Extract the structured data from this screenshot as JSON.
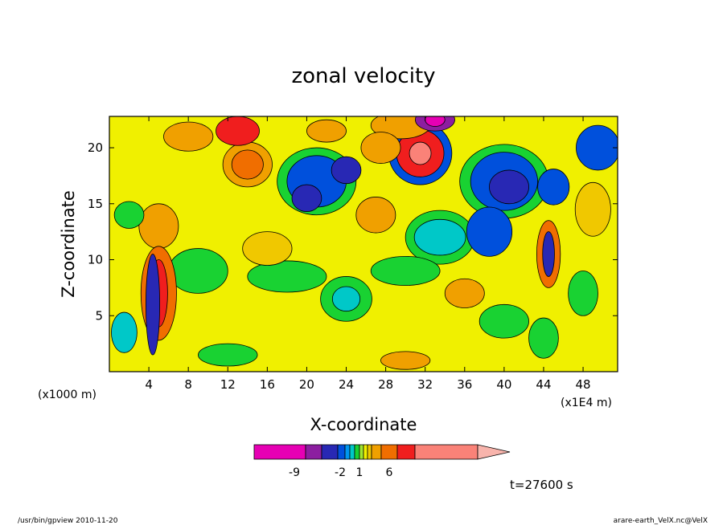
{
  "chart_data": {
    "type": "heatmap",
    "subtype": "filled-contour",
    "title": "zonal velocity",
    "xlabel": "X-coordinate",
    "ylabel": "Z-coordinate",
    "x_unit": "(x1000 m)",
    "x_scale_note": "(x1E4 m)",
    "xlim": [
      0,
      51.5
    ],
    "ylim": [
      0,
      22.8
    ],
    "x_ticks": [
      4,
      8,
      12,
      16,
      20,
      24,
      28,
      32,
      36,
      40,
      44,
      48
    ],
    "y_ticks": [
      5,
      10,
      15,
      20
    ],
    "timestamp": "t=27600 s",
    "colorbar": {
      "colors": [
        "#e600b4",
        "#8c1ea0",
        "#2828b4",
        "#0050dc",
        "#0096f0",
        "#00c8c8",
        "#19d232",
        "#a0e632",
        "#f0f000",
        "#f0c800",
        "#f0a000",
        "#f06e00",
        "#f01e1e",
        "#fa8278",
        "#f8b4ac"
      ],
      "labels": [
        "-9",
        "-2",
        "1",
        "6"
      ],
      "extend": "max"
    },
    "features": [
      {
        "x": 32.0,
        "z": 19.5,
        "value": "max_positive",
        "label": "red core"
      },
      {
        "x": 20.0,
        "z": 16.5,
        "value": "negative",
        "label": "blue region"
      },
      {
        "x": 40.0,
        "z": 16.5,
        "value": "negative",
        "label": "blue region"
      },
      {
        "x": 33.0,
        "z": 12.0,
        "value": "weak negative",
        "label": "cyan region"
      },
      {
        "x": 4.0,
        "z": 8.0,
        "value": "mixed",
        "label": "fine structures"
      },
      {
        "x": 44.0,
        "z": 8.0,
        "value": "mixed",
        "label": "fine structures"
      }
    ]
  },
  "footer": {
    "left": "/usr/bin/gpview  2010-11-20",
    "right": "arare-earth_VelX.nc@VelX"
  },
  "colors": {
    "background": "#ffffff",
    "axis": "#000000"
  }
}
